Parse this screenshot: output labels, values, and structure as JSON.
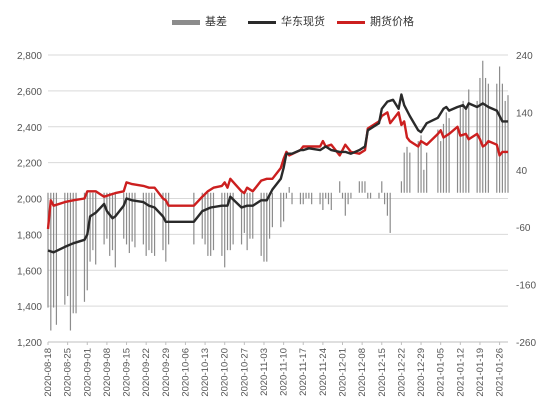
{
  "chart_data": {
    "type": "bar+line",
    "legend": [
      {
        "name": "基差",
        "color": "#8c8c8c",
        "style": "bar"
      },
      {
        "name": "华东现货",
        "color": "#2a2a2a",
        "style": "line"
      },
      {
        "name": "期货价格",
        "color": "#cc1f1f",
        "style": "line"
      }
    ],
    "y_left": {
      "min": 1200,
      "max": 2800,
      "ticks": [
        "1,200",
        "1,400",
        "1,600",
        "1,800",
        "2,000",
        "2,200",
        "2,400",
        "2,600",
        "2,800"
      ]
    },
    "y_right": {
      "min": -260,
      "max": 240,
      "ticks": [
        "-260",
        "-160",
        "-60",
        "40",
        "140",
        "240"
      ]
    },
    "x_tick_labels": [
      "2020-08-18",
      "2020-08-25",
      "2020-09-01",
      "2020-09-08",
      "2020-09-15",
      "2020-09-22",
      "2020-09-29",
      "2020-10-06",
      "2020-10-13",
      "2020-10-20",
      "2020-10-27",
      "2020-11-03",
      "2020-11-10",
      "2020-11-17",
      "2020-11-24",
      "2020-12-01",
      "2020-12-08",
      "2020-12-15",
      "2020-12-22",
      "2020-12-29",
      "2021-01-05",
      "2021-01-12",
      "2021-01-19",
      "2021-01-26"
    ],
    "x_start": "2020-08-18",
    "x_end": "2021-01-29",
    "spot_series": {
      "name": "华东现货",
      "points": [
        [
          "2020-08-18",
          1710
        ],
        [
          "2020-08-20",
          1700
        ],
        [
          "2020-08-24",
          1730
        ],
        [
          "2020-08-27",
          1750
        ],
        [
          "2020-08-31",
          1770
        ],
        [
          "2020-09-01",
          1800
        ],
        [
          "2020-09-02",
          1900
        ],
        [
          "2020-09-04",
          1920
        ],
        [
          "2020-09-07",
          1970
        ],
        [
          "2020-09-08",
          1930
        ],
        [
          "2020-09-10",
          1890
        ],
        [
          "2020-09-11",
          1900
        ],
        [
          "2020-09-14",
          1960
        ],
        [
          "2020-09-15",
          2000
        ],
        [
          "2020-09-17",
          1990
        ],
        [
          "2020-09-21",
          1980
        ],
        [
          "2020-09-23",
          1960
        ],
        [
          "2020-09-25",
          1950
        ],
        [
          "2020-09-28",
          1900
        ],
        [
          "2020-09-29",
          1870
        ],
        [
          "2020-10-09",
          1870
        ],
        [
          "2020-10-12",
          1930
        ],
        [
          "2020-10-15",
          1950
        ],
        [
          "2020-10-19",
          1960
        ],
        [
          "2020-10-21",
          1960
        ],
        [
          "2020-10-22",
          2010
        ],
        [
          "2020-10-26",
          1950
        ],
        [
          "2020-10-28",
          1960
        ],
        [
          "2020-10-30",
          1960
        ],
        [
          "2020-11-02",
          1990
        ],
        [
          "2020-11-04",
          1990
        ],
        [
          "2020-11-06",
          2050
        ],
        [
          "2020-11-09",
          2110
        ],
        [
          "2020-11-10",
          2170
        ],
        [
          "2020-11-11",
          2250
        ],
        [
          "2020-11-13",
          2250
        ],
        [
          "2020-11-16",
          2270
        ],
        [
          "2020-11-17",
          2270
        ],
        [
          "2020-11-19",
          2280
        ],
        [
          "2020-11-23",
          2270
        ],
        [
          "2020-11-25",
          2290
        ],
        [
          "2020-11-27",
          2270
        ],
        [
          "2020-11-30",
          2260
        ],
        [
          "2020-12-02",
          2260
        ],
        [
          "2020-12-04",
          2250
        ],
        [
          "2020-12-07",
          2270
        ],
        [
          "2020-12-09",
          2290
        ],
        [
          "2020-12-10",
          2380
        ],
        [
          "2020-12-14",
          2420
        ],
        [
          "2020-12-15",
          2500
        ],
        [
          "2020-12-17",
          2540
        ],
        [
          "2020-12-19",
          2550
        ],
        [
          "2020-12-21",
          2500
        ],
        [
          "2020-12-22",
          2580
        ],
        [
          "2020-12-23",
          2520
        ],
        [
          "2020-12-25",
          2460
        ],
        [
          "2020-12-28",
          2380
        ],
        [
          "2020-12-29",
          2370
        ],
        [
          "2020-12-31",
          2420
        ],
        [
          "2021-01-04",
          2450
        ],
        [
          "2021-01-06",
          2500
        ],
        [
          "2021-01-07",
          2510
        ],
        [
          "2021-01-08",
          2490
        ],
        [
          "2021-01-11",
          2510
        ],
        [
          "2021-01-13",
          2520
        ],
        [
          "2021-01-14",
          2500
        ],
        [
          "2021-01-15",
          2530
        ],
        [
          "2021-01-18",
          2510
        ],
        [
          "2021-01-19",
          2520
        ],
        [
          "2021-01-20",
          2530
        ],
        [
          "2021-01-22",
          2510
        ],
        [
          "2021-01-25",
          2490
        ],
        [
          "2021-01-27",
          2430
        ],
        [
          "2021-01-29",
          2430
        ]
      ]
    },
    "futures_series": {
      "name": "期货价格",
      "points": [
        [
          "2020-08-18",
          1830
        ],
        [
          "2020-08-19",
          1990
        ],
        [
          "2020-08-20",
          1960
        ],
        [
          "2020-08-24",
          1980
        ],
        [
          "2020-08-27",
          1990
        ],
        [
          "2020-08-31",
          2000
        ],
        [
          "2020-09-01",
          2040
        ],
        [
          "2020-09-04",
          2040
        ],
        [
          "2020-09-07",
          2010
        ],
        [
          "2020-09-09",
          2020
        ],
        [
          "2020-09-11",
          2030
        ],
        [
          "2020-09-14",
          2040
        ],
        [
          "2020-09-15",
          2090
        ],
        [
          "2020-09-17",
          2080
        ],
        [
          "2020-09-21",
          2070
        ],
        [
          "2020-09-23",
          2060
        ],
        [
          "2020-09-25",
          2060
        ],
        [
          "2020-09-28",
          2000
        ],
        [
          "2020-09-29",
          1990
        ],
        [
          "2020-09-30",
          1960
        ],
        [
          "2020-10-09",
          1960
        ],
        [
          "2020-10-12",
          2010
        ],
        [
          "2020-10-14",
          2040
        ],
        [
          "2020-10-16",
          2060
        ],
        [
          "2020-10-19",
          2070
        ],
        [
          "2020-10-20",
          2090
        ],
        [
          "2020-10-21",
          2060
        ],
        [
          "2020-10-22",
          2110
        ],
        [
          "2020-10-26",
          2040
        ],
        [
          "2020-10-27",
          2030
        ],
        [
          "2020-10-28",
          2060
        ],
        [
          "2020-10-30",
          2040
        ],
        [
          "2020-11-02",
          2100
        ],
        [
          "2020-11-04",
          2110
        ],
        [
          "2020-11-06",
          2110
        ],
        [
          "2020-11-09",
          2170
        ],
        [
          "2020-11-10",
          2220
        ],
        [
          "2020-11-11",
          2260
        ],
        [
          "2020-11-12",
          2240
        ],
        [
          "2020-11-16",
          2270
        ],
        [
          "2020-11-17",
          2290
        ],
        [
          "2020-11-19",
          2290
        ],
        [
          "2020-11-23",
          2290
        ],
        [
          "2020-11-24",
          2320
        ],
        [
          "2020-11-25",
          2290
        ],
        [
          "2020-11-27",
          2300
        ],
        [
          "2020-11-30",
          2240
        ],
        [
          "2020-12-02",
          2300
        ],
        [
          "2020-12-04",
          2260
        ],
        [
          "2020-12-07",
          2250
        ],
        [
          "2020-12-09",
          2270
        ],
        [
          "2020-12-10",
          2390
        ],
        [
          "2020-12-14",
          2430
        ],
        [
          "2020-12-15",
          2460
        ],
        [
          "2020-12-17",
          2480
        ],
        [
          "2020-12-18",
          2420
        ],
        [
          "2020-12-21",
          2480
        ],
        [
          "2020-12-22",
          2410
        ],
        [
          "2020-12-23",
          2430
        ],
        [
          "2020-12-24",
          2340
        ],
        [
          "2020-12-25",
          2320
        ],
        [
          "2020-12-28",
          2290
        ],
        [
          "2020-12-29",
          2320
        ],
        [
          "2020-12-31",
          2300
        ],
        [
          "2021-01-04",
          2360
        ],
        [
          "2021-01-05",
          2380
        ],
        [
          "2021-01-06",
          2340
        ],
        [
          "2021-01-08",
          2360
        ],
        [
          "2021-01-11",
          2400
        ],
        [
          "2021-01-12",
          2350
        ],
        [
          "2021-01-14",
          2360
        ],
        [
          "2021-01-15",
          2330
        ],
        [
          "2021-01-18",
          2360
        ],
        [
          "2021-01-19",
          2330
        ],
        [
          "2021-01-20",
          2290
        ],
        [
          "2021-01-21",
          2300
        ],
        [
          "2021-01-22",
          2320
        ],
        [
          "2021-01-25",
          2300
        ],
        [
          "2021-01-26",
          2240
        ],
        [
          "2021-01-27",
          2260
        ],
        [
          "2021-01-29",
          2260
        ]
      ]
    },
    "basis_series": {
      "name": "基差",
      "points": [
        [
          "2020-08-18",
          -200
        ],
        [
          "2020-08-19",
          -240
        ],
        [
          "2020-08-20",
          -200
        ],
        [
          "2020-08-21",
          -230
        ],
        [
          "2020-08-24",
          -195
        ],
        [
          "2020-08-25",
          -180
        ],
        [
          "2020-08-26",
          -240
        ],
        [
          "2020-08-27",
          -210
        ],
        [
          "2020-08-28",
          -210
        ],
        [
          "2020-08-31",
          -190
        ],
        [
          "2020-09-01",
          -170
        ],
        [
          "2020-09-02",
          -120
        ],
        [
          "2020-09-03",
          -100
        ],
        [
          "2020-09-04",
          -125
        ],
        [
          "2020-09-07",
          -90
        ],
        [
          "2020-09-08",
          -80
        ],
        [
          "2020-09-09",
          -110
        ],
        [
          "2020-09-10",
          -100
        ],
        [
          "2020-09-11",
          -130
        ],
        [
          "2020-09-14",
          -80
        ],
        [
          "2020-09-15",
          -90
        ],
        [
          "2020-09-16",
          -105
        ],
        [
          "2020-09-17",
          -85
        ],
        [
          "2020-09-18",
          -95
        ],
        [
          "2020-09-21",
          -90
        ],
        [
          "2020-09-22",
          -110
        ],
        [
          "2020-09-23",
          -100
        ],
        [
          "2020-09-24",
          -105
        ],
        [
          "2020-09-25",
          -110
        ],
        [
          "2020-09-28",
          -100
        ],
        [
          "2020-09-29",
          -120
        ],
        [
          "2020-09-30",
          -90
        ],
        [
          "2020-10-09",
          -90
        ],
        [
          "2020-10-12",
          -80
        ],
        [
          "2020-10-13",
          -90
        ],
        [
          "2020-10-14",
          -110
        ],
        [
          "2020-10-15",
          -110
        ],
        [
          "2020-10-16",
          -100
        ],
        [
          "2020-10-19",
          -110
        ],
        [
          "2020-10-20",
          -130
        ],
        [
          "2020-10-21",
          -100
        ],
        [
          "2020-10-22",
          -100
        ],
        [
          "2020-10-23",
          -90
        ],
        [
          "2020-10-26",
          -90
        ],
        [
          "2020-10-27",
          -70
        ],
        [
          "2020-10-28",
          -100
        ],
        [
          "2020-10-29",
          -80
        ],
        [
          "2020-10-30",
          -80
        ],
        [
          "2020-11-02",
          -110
        ],
        [
          "2020-11-03",
          -120
        ],
        [
          "2020-11-04",
          -120
        ],
        [
          "2020-11-05",
          -80
        ],
        [
          "2020-11-06",
          -60
        ],
        [
          "2020-11-09",
          -60
        ],
        [
          "2020-11-10",
          -50
        ],
        [
          "2020-11-11",
          -10
        ],
        [
          "2020-11-12",
          10
        ],
        [
          "2020-11-13",
          -20
        ],
        [
          "2020-11-16",
          -20
        ],
        [
          "2020-11-17",
          -20
        ],
        [
          "2020-11-18",
          -10
        ],
        [
          "2020-11-19",
          -10
        ],
        [
          "2020-11-20",
          -20
        ],
        [
          "2020-11-23",
          -20
        ],
        [
          "2020-11-24",
          -30
        ],
        [
          "2020-11-25",
          -10
        ],
        [
          "2020-11-26",
          -20
        ],
        [
          "2020-11-27",
          -30
        ],
        [
          "2020-11-30",
          20
        ],
        [
          "2020-12-01",
          -10
        ],
        [
          "2020-12-02",
          -40
        ],
        [
          "2020-12-03",
          -20
        ],
        [
          "2020-12-04",
          -10
        ],
        [
          "2020-12-07",
          20
        ],
        [
          "2020-12-08",
          20
        ],
        [
          "2020-12-09",
          20
        ],
        [
          "2020-12-10",
          -10
        ],
        [
          "2020-12-11",
          -10
        ],
        [
          "2020-12-14",
          -10
        ],
        [
          "2020-12-15",
          20
        ],
        [
          "2020-12-16",
          -20
        ],
        [
          "2020-12-17",
          -40
        ],
        [
          "2020-12-18",
          -70
        ],
        [
          "2020-12-21",
          0
        ],
        [
          "2020-12-22",
          20
        ],
        [
          "2020-12-23",
          70
        ],
        [
          "2020-12-24",
          80
        ],
        [
          "2020-12-25",
          70
        ],
        [
          "2020-12-28",
          90
        ],
        [
          "2020-12-29",
          100
        ],
        [
          "2020-12-30",
          40
        ],
        [
          "2020-12-31",
          70
        ],
        [
          "2021-01-04",
          110
        ],
        [
          "2021-01-05",
          90
        ],
        [
          "2021-01-06",
          120
        ],
        [
          "2021-01-07",
          140
        ],
        [
          "2021-01-08",
          130
        ],
        [
          "2021-01-11",
          110
        ],
        [
          "2021-01-12",
          150
        ],
        [
          "2021-01-13",
          160
        ],
        [
          "2021-01-14",
          150
        ],
        [
          "2021-01-15",
          180
        ],
        [
          "2021-01-18",
          160
        ],
        [
          "2021-01-19",
          200
        ],
        [
          "2021-01-20",
          230
        ],
        [
          "2021-01-21",
          200
        ],
        [
          "2021-01-22",
          190
        ],
        [
          "2021-01-25",
          190
        ],
        [
          "2021-01-26",
          220
        ],
        [
          "2021-01-27",
          190
        ],
        [
          "2021-01-28",
          160
        ],
        [
          "2021-01-29",
          170
        ]
      ]
    }
  }
}
